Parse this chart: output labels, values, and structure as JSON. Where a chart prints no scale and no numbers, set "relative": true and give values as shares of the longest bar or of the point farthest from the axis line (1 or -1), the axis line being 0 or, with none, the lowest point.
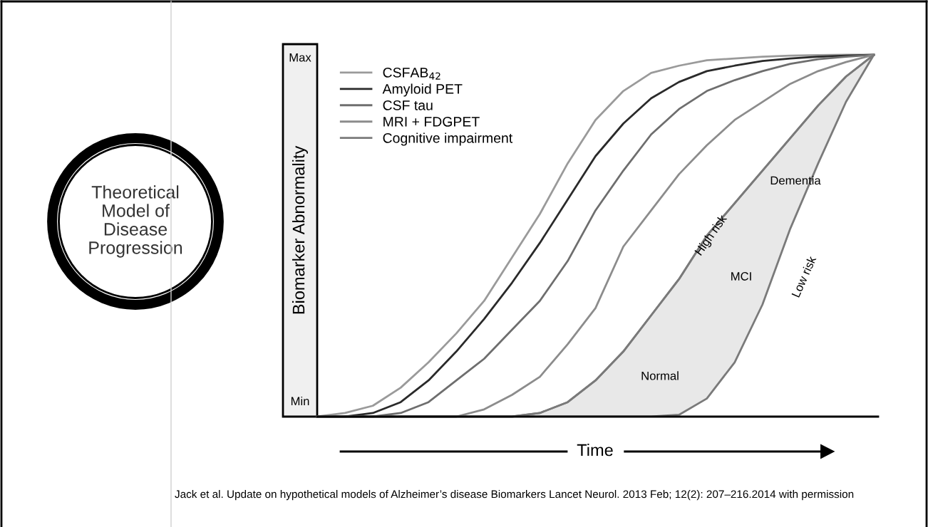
{
  "chart_data": {
    "type": "line",
    "relative": true,
    "title": "Theoretical Model of Disease Progression",
    "ylabel": "Biomarker Abnormality",
    "xlabel": "Time",
    "categories": [
      null,
      null,
      null,
      null,
      null,
      null,
      null,
      null,
      null,
      null,
      null,
      null,
      null,
      null,
      null,
      null,
      null,
      null,
      null,
      null,
      null
    ],
    "series": [
      {
        "name": "CSFAB$_{42}$",
        "color": "#9a9a9a",
        "values": [
          0,
          0.01,
          0.03,
          0.08,
          0.15,
          0.23,
          0.32,
          0.44,
          0.56,
          0.7,
          0.82,
          0.9,
          0.95,
          0.97,
          0.985,
          0.99,
          0.995,
          0.998,
          0.999,
          1,
          1
        ]
      },
      {
        "name": "Amyloid PET",
        "color": "#2a2a2a",
        "values": [
          0,
          0,
          0.01,
          0.04,
          0.1,
          0.18,
          0.27,
          0.37,
          0.48,
          0.6,
          0.72,
          0.81,
          0.88,
          0.925,
          0.955,
          0.97,
          0.983,
          0.99,
          0.995,
          0.998,
          1
        ]
      },
      {
        "name": "CSF tau",
        "color": "#6e6e6e",
        "values": [
          0,
          0,
          0,
          0.01,
          0.04,
          0.1,
          0.16,
          0.24,
          0.32,
          0.43,
          0.57,
          0.68,
          0.78,
          0.85,
          0.9,
          0.93,
          0.955,
          0.975,
          0.988,
          0.995,
          1
        ]
      },
      {
        "name": "MRI + FDGPET",
        "color": "#8c8c8c",
        "values": [
          0,
          0,
          0,
          0,
          0,
          0,
          0.02,
          0.06,
          0.11,
          0.2,
          0.3,
          0.47,
          0.57,
          0.67,
          0.75,
          0.82,
          0.87,
          0.92,
          0.955,
          0.98,
          1
        ]
      },
      {
        "name": "Cognitive impairment",
        "color": "#7a7a7a",
        "values": [
          0,
          0,
          0,
          0,
          0,
          0,
          0,
          0,
          0.01,
          0.04,
          0.1,
          0.18,
          0.28,
          0.38,
          0.5,
          0.59,
          0.68,
          0.77,
          0.86,
          0.94,
          1
        ],
        "upper": [
          0,
          0,
          0,
          0,
          0,
          0,
          0,
          0,
          0.01,
          0.04,
          0.1,
          0.18,
          0.28,
          0.38,
          0.5,
          0.59,
          0.68,
          0.77,
          0.86,
          0.94,
          1
        ],
        "lower": [
          0,
          0,
          0,
          0,
          0,
          0,
          0,
          0,
          0,
          0,
          0,
          0,
          0,
          0.005,
          0.05,
          0.15,
          0.31,
          0.52,
          0.7,
          0.87,
          1
        ]
      }
    ],
    "legend": "top left",
    "grid": false,
    "marker": "none",
    "line_style": "solid",
    "annotations": [
      "Max",
      "Min",
      "High risk",
      "Dementia",
      "MCI",
      "Low risk",
      "Normal",
      "Jack et al. Update on hypothetical models of Alzheimer’s disease Biomarkers Lancet Neurol. 2013 Feb; 12(2): 207–216.2014 with permission"
    ]
  }
}
